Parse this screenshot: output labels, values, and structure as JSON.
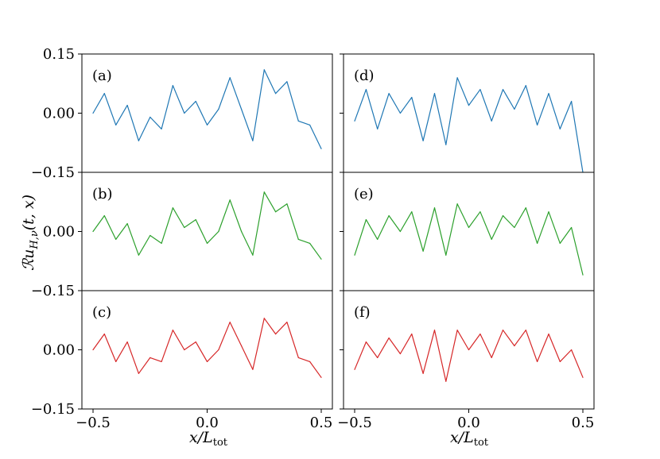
{
  "chart_data": {
    "type": "line",
    "ylabel": "ℛu",
    "ylabel_sub": "H,ν",
    "ylabel_tail": "(t, x)",
    "xlabel": "x/L",
    "xlabel_sub": "tot",
    "xlim": [
      -0.5,
      0.5
    ],
    "ylim": [
      -0.15,
      0.15
    ],
    "x_ticks": [
      "−0.5",
      "0.0",
      "0.5"
    ],
    "x_tick_values": [
      -0.5,
      0.0,
      0.5
    ],
    "y_ticks": [
      "0.15",
      "0.00",
      "−0.15"
    ],
    "y_tick_values": [
      0.15,
      0.0,
      -0.15
    ],
    "panels": [
      {
        "label": "(a)",
        "color": "#1f77b4",
        "x": [
          -0.5,
          -0.45,
          -0.4,
          -0.35,
          -0.3,
          -0.25,
          -0.2,
          -0.15,
          -0.1,
          -0.05,
          0.0,
          0.05,
          0.1,
          0.15,
          0.2,
          0.25,
          0.3,
          0.35,
          0.4,
          0.45,
          0.5
        ],
        "y": [
          0.0,
          0.05,
          -0.03,
          0.02,
          -0.07,
          -0.01,
          -0.04,
          0.07,
          0.0,
          0.03,
          -0.03,
          0.01,
          0.09,
          0.01,
          -0.07,
          0.11,
          0.05,
          0.08,
          -0.02,
          -0.03,
          -0.09
        ]
      },
      {
        "label": "(b)",
        "color": "#2ca02c",
        "x": [
          -0.5,
          -0.45,
          -0.4,
          -0.35,
          -0.3,
          -0.25,
          -0.2,
          -0.15,
          -0.1,
          -0.05,
          0.0,
          0.05,
          0.1,
          0.15,
          0.2,
          0.25,
          0.3,
          0.35,
          0.4,
          0.45,
          0.5
        ],
        "y": [
          0.0,
          0.04,
          -0.02,
          0.02,
          -0.06,
          -0.01,
          -0.03,
          0.06,
          0.01,
          0.03,
          -0.03,
          0.0,
          0.08,
          0.0,
          -0.06,
          0.1,
          0.05,
          0.07,
          -0.02,
          -0.03,
          -0.07
        ]
      },
      {
        "label": "(c)",
        "color": "#d62728",
        "x": [
          -0.5,
          -0.45,
          -0.4,
          -0.35,
          -0.3,
          -0.25,
          -0.2,
          -0.15,
          -0.1,
          -0.05,
          0.0,
          0.05,
          0.1,
          0.15,
          0.2,
          0.25,
          0.3,
          0.35,
          0.4,
          0.45,
          0.5
        ],
        "y": [
          0.0,
          0.04,
          -0.03,
          0.02,
          -0.06,
          -0.02,
          -0.03,
          0.05,
          0.0,
          0.02,
          -0.03,
          0.0,
          0.07,
          0.01,
          -0.05,
          0.08,
          0.04,
          0.07,
          -0.02,
          -0.03,
          -0.07
        ]
      },
      {
        "label": "(d)",
        "color": "#1f77b4",
        "x": [
          -0.5,
          -0.45,
          -0.4,
          -0.35,
          -0.3,
          -0.25,
          -0.2,
          -0.15,
          -0.1,
          -0.05,
          0.0,
          0.05,
          0.1,
          0.15,
          0.2,
          0.25,
          0.3,
          0.35,
          0.4,
          0.45,
          0.5
        ],
        "y": [
          -0.02,
          0.06,
          -0.04,
          0.05,
          0.0,
          0.04,
          -0.07,
          0.05,
          -0.08,
          0.09,
          0.02,
          0.06,
          -0.02,
          0.06,
          0.01,
          0.07,
          -0.03,
          0.05,
          -0.04,
          0.03,
          -0.15
        ]
      },
      {
        "label": "(e)",
        "color": "#2ca02c",
        "x": [
          -0.5,
          -0.45,
          -0.4,
          -0.35,
          -0.3,
          -0.25,
          -0.2,
          -0.15,
          -0.1,
          -0.05,
          0.0,
          0.05,
          0.1,
          0.15,
          0.2,
          0.25,
          0.3,
          0.35,
          0.4,
          0.45,
          0.5
        ],
        "y": [
          -0.06,
          0.03,
          -0.02,
          0.04,
          0.0,
          0.05,
          -0.05,
          0.06,
          -0.06,
          0.07,
          0.01,
          0.05,
          -0.02,
          0.04,
          0.01,
          0.06,
          -0.03,
          0.05,
          -0.03,
          0.01,
          -0.11
        ]
      },
      {
        "label": "(f)",
        "color": "#d62728",
        "x": [
          -0.5,
          -0.45,
          -0.4,
          -0.35,
          -0.3,
          -0.25,
          -0.2,
          -0.15,
          -0.1,
          -0.05,
          0.0,
          0.05,
          0.1,
          0.15,
          0.2,
          0.25,
          0.3,
          0.35,
          0.4,
          0.45,
          0.5
        ],
        "y": [
          -0.05,
          0.02,
          -0.02,
          0.03,
          -0.01,
          0.04,
          -0.06,
          0.05,
          -0.08,
          0.05,
          0.0,
          0.04,
          -0.02,
          0.05,
          0.01,
          0.05,
          -0.03,
          0.04,
          -0.03,
          0.0,
          -0.07
        ]
      }
    ]
  }
}
